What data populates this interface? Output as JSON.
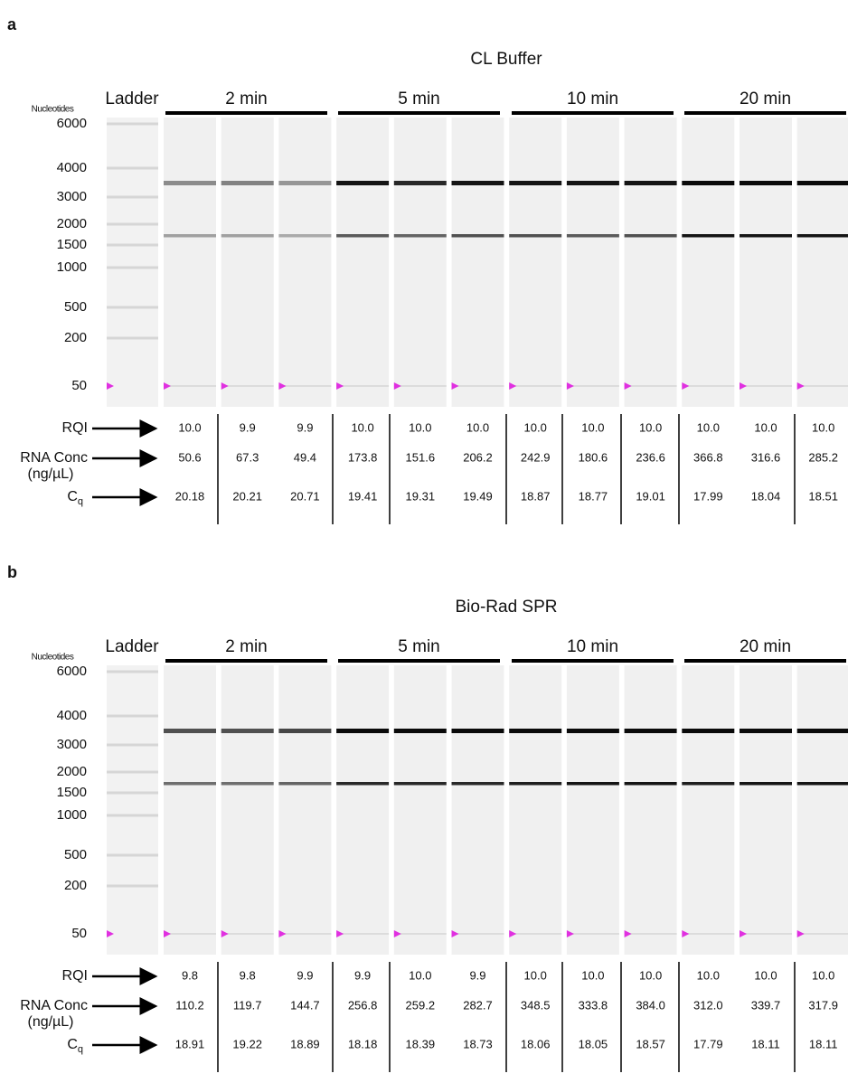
{
  "panels": [
    {
      "label": "a",
      "title": "CL Buffer",
      "ladder_label": "Ladder",
      "axis_label": "Nucleotides",
      "ladder_ticks": [
        "6000",
        "4000",
        "3000",
        "2000",
        "1500",
        "1000",
        "500",
        "200",
        "50"
      ],
      "groups": [
        "2 min",
        "5 min",
        "10 min",
        "20 min"
      ],
      "rows": [
        {
          "label": "RQI",
          "values": [
            "10.0",
            "9.9",
            "9.9",
            "10.0",
            "10.0",
            "10.0",
            "10.0",
            "10.0",
            "10.0",
            "10.0",
            "10.0",
            "10.0"
          ]
        },
        {
          "label": "RNA Conc",
          "label_line2": "(ng/µL)",
          "values": [
            "50.6",
            "67.3",
            "49.4",
            "173.8",
            "151.6",
            "206.2",
            "242.9",
            "180.6",
            "236.6",
            "366.8",
            "316.6",
            "285.2"
          ]
        },
        {
          "label": "C",
          "label_sub": "q",
          "values": [
            "20.18",
            "20.21",
            "20.71",
            "19.41",
            "19.31",
            "19.49",
            "18.87",
            "18.77",
            "19.01",
            "17.99",
            "18.04",
            "18.51"
          ]
        }
      ]
    },
    {
      "label": "b",
      "title": "Bio-Rad SPR",
      "ladder_label": "Ladder",
      "axis_label": "Nucleotides",
      "ladder_ticks": [
        "6000",
        "4000",
        "3000",
        "2000",
        "1500",
        "1000",
        "500",
        "200",
        "50"
      ],
      "groups": [
        "2 min",
        "5 min",
        "10 min",
        "20 min"
      ],
      "rows": [
        {
          "label": "RQI",
          "values": [
            "9.8",
            "9.8",
            "9.9",
            "9.9",
            "10.0",
            "9.9",
            "10.0",
            "10.0",
            "10.0",
            "10.0",
            "10.0",
            "10.0"
          ]
        },
        {
          "label": "RNA Conc",
          "label_line2": "(ng/µL)",
          "values": [
            "110.2",
            "119.7",
            "144.7",
            "256.8",
            "259.2",
            "282.7",
            "348.5",
            "333.8",
            "384.0",
            "312.0",
            "339.7",
            "317.9"
          ]
        },
        {
          "label": "C",
          "label_sub": "q",
          "values": [
            "18.91",
            "19.22",
            "18.89",
            "18.18",
            "18.39",
            "18.73",
            "18.06",
            "18.05",
            "18.57",
            "17.79",
            "18.11",
            "18.11"
          ]
        }
      ]
    }
  ]
}
